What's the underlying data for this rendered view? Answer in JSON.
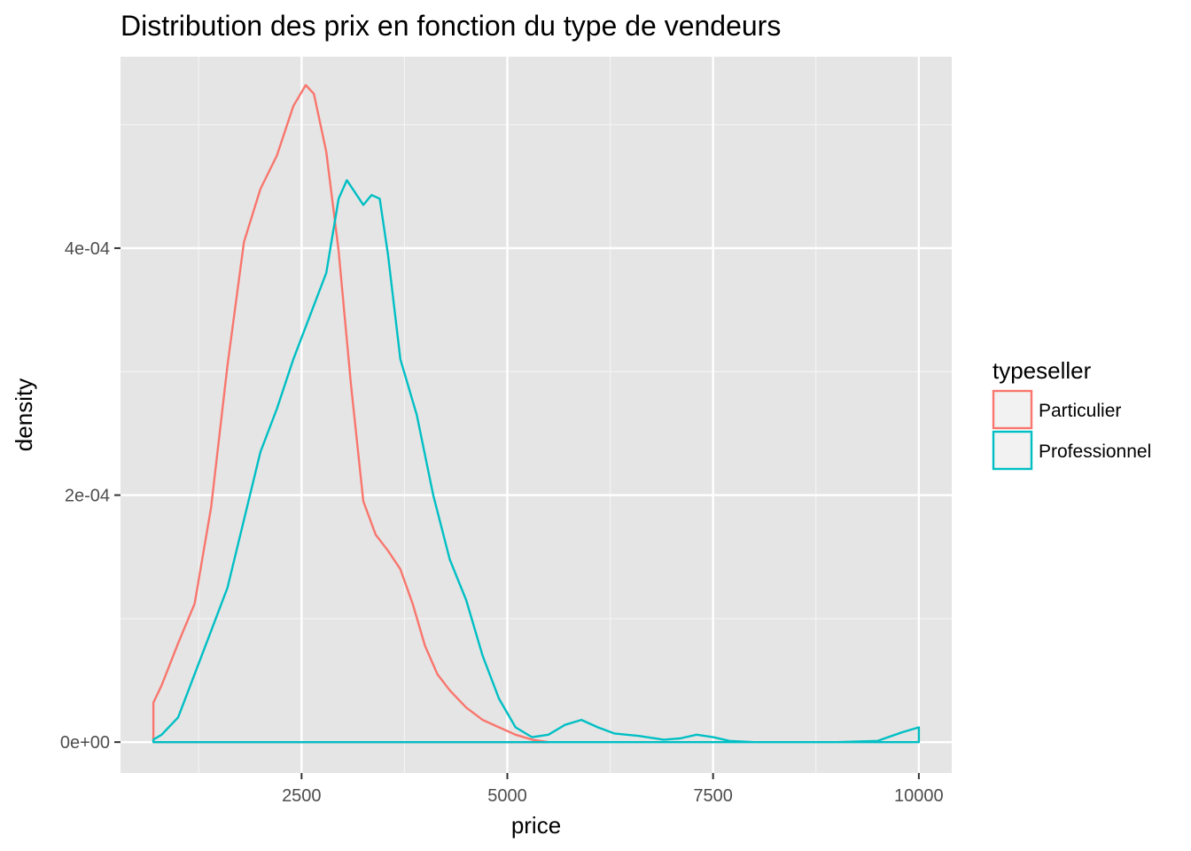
{
  "chart_data": {
    "type": "line",
    "subtype": "density",
    "title": "Distribution des prix en fonction du type de vendeurs",
    "xlabel": "price",
    "ylabel": "density",
    "xlim": [
      300,
      10400
    ],
    "ylim": [
      -2.5e-05,
      0.000555
    ],
    "x_ticks": [
      2500,
      5000,
      7500,
      10000
    ],
    "x_tick_labels": [
      "2500",
      "5000",
      "7500",
      "10000"
    ],
    "y_ticks": [
      0,
      0.0002,
      0.0004
    ],
    "y_tick_labels": [
      "0e+00",
      "2e-04",
      "4e-04"
    ],
    "grid": true,
    "background": "#e5e5e5",
    "legend": {
      "title": "typeseller",
      "position": "right",
      "entries": [
        {
          "label": "Particulier",
          "color": "#f8766d"
        },
        {
          "label": "Professionnel",
          "color": "#00bfc4"
        }
      ]
    },
    "series": [
      {
        "name": "Particulier",
        "color": "#f8766d",
        "x": [
          700,
          800,
          1000,
          1200,
          1400,
          1600,
          1800,
          2000,
          2200,
          2400,
          2550,
          2650,
          2800,
          2950,
          3100,
          3250,
          3400,
          3550,
          3700,
          3850,
          4000,
          4150,
          4300,
          4500,
          4700,
          4900,
          5100,
          5300,
          5500
        ],
        "y": [
          3.2e-05,
          4.6e-05,
          8e-05,
          0.000112,
          0.00019,
          0.000305,
          0.000405,
          0.000448,
          0.000475,
          0.000515,
          0.000532,
          0.000525,
          0.000478,
          0.000398,
          0.00029,
          0.000195,
          0.000168,
          0.000155,
          0.00014,
          0.000112,
          7.8e-05,
          5.5e-05,
          4.2e-05,
          2.8e-05,
          1.8e-05,
          1.2e-05,
          6e-06,
          2e-06,
          0
        ]
      },
      {
        "name": "Professionnel",
        "color": "#00bfc4",
        "x": [
          700,
          800,
          1000,
          1200,
          1400,
          1600,
          1800,
          2000,
          2200,
          2400,
          2600,
          2800,
          2950,
          3050,
          3150,
          3250,
          3350,
          3450,
          3550,
          3700,
          3900,
          4100,
          4300,
          4500,
          4700,
          4900,
          5100,
          5300,
          5500,
          5700,
          5900,
          6100,
          6300,
          6600,
          6900,
          7100,
          7300,
          7500,
          7700,
          8000,
          8500,
          9000,
          9500,
          9800,
          10000
        ],
        "y": [
          2e-06,
          6e-06,
          2e-05,
          5.5e-05,
          9e-05,
          0.000125,
          0.00018,
          0.000235,
          0.00027,
          0.00031,
          0.000345,
          0.00038,
          0.00044,
          0.000455,
          0.000445,
          0.000435,
          0.000443,
          0.00044,
          0.000395,
          0.00031,
          0.000265,
          0.0002,
          0.000148,
          0.000115,
          7e-05,
          3.5e-05,
          1.2e-05,
          4e-06,
          6e-06,
          1.4e-05,
          1.8e-05,
          1.2e-05,
          7e-06,
          5e-06,
          2e-06,
          3e-06,
          6e-06,
          4e-06,
          1e-06,
          0,
          0,
          0,
          1e-06,
          8e-06,
          1.2e-05
        ]
      }
    ]
  }
}
